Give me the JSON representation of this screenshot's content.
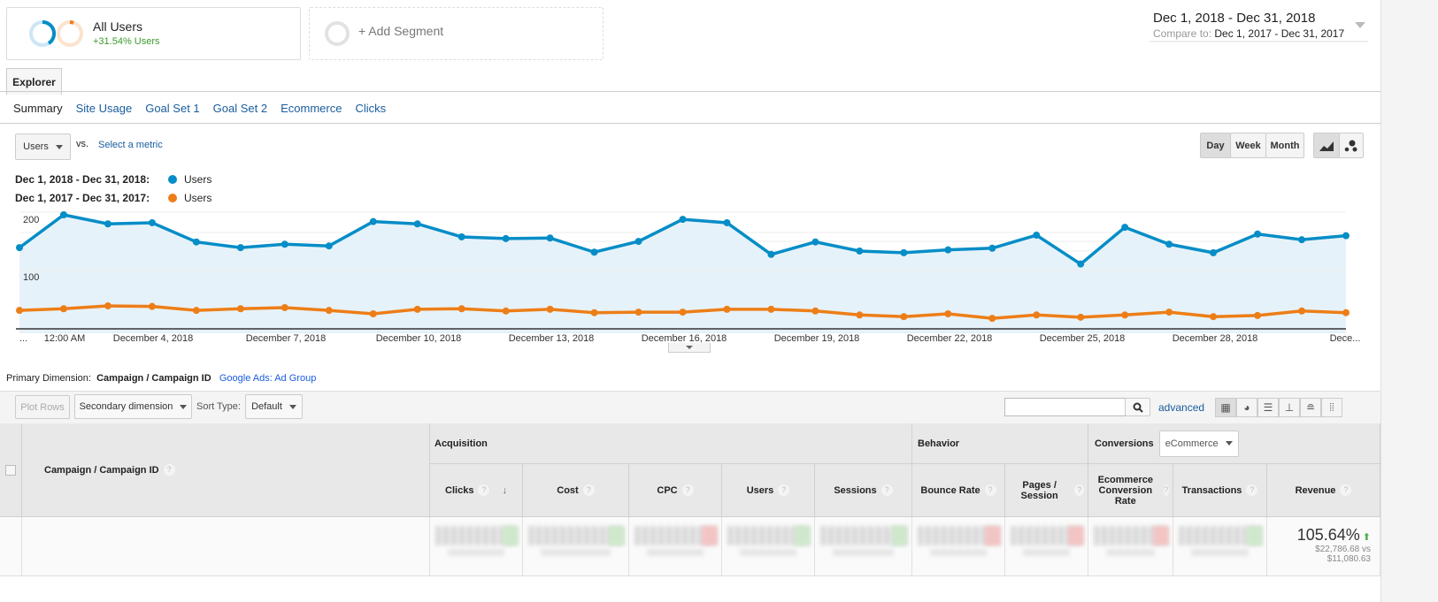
{
  "segments": {
    "all_users": {
      "label": "All Users",
      "change": "+31.54% Users"
    },
    "add_segment": "+ Add Segment"
  },
  "date_range": {
    "primary": "Dec 1, 2018 - Dec 31, 2018",
    "compare_label": "Compare to:",
    "compare": "Dec 1, 2017 - Dec 31, 2017"
  },
  "tabs": {
    "explorer": "Explorer"
  },
  "subtabs": [
    "Summary",
    "Site Usage",
    "Goal Set 1",
    "Goal Set 2",
    "Ecommerce",
    "Clicks"
  ],
  "metric": {
    "selected": "Users",
    "vs": "vs.",
    "select": "Select a metric"
  },
  "granularity": [
    "Day",
    "Week",
    "Month"
  ],
  "legend": [
    {
      "range": "Dec 1, 2018 - Dec 31, 2018:",
      "metric": "Users",
      "color": "#058dc7"
    },
    {
      "range": "Dec 1, 2017 - Dec 31, 2017:",
      "metric": "Users",
      "color": "#ed7e17"
    }
  ],
  "chart_data": {
    "type": "line",
    "y_ticks": [
      "200",
      "100"
    ],
    "x_tick_labels": [
      "...",
      "12:00 AM",
      "December 4, 2018",
      "December 7, 2018",
      "December 10, 2018",
      "December 13, 2018",
      "December 16, 2018",
      "December 19, 2018",
      "December 22, 2018",
      "December 25, 2018",
      "December 28, 2018",
      "Dece..."
    ],
    "ylim": [
      0,
      220
    ],
    "grid": true,
    "series": [
      {
        "name": "Users",
        "color": "#058dc7",
        "values": [
          142,
          200,
          184,
          186,
          152,
          142,
          148,
          145,
          188,
          184,
          161,
          158,
          159,
          134,
          153,
          192,
          186,
          130,
          152,
          136,
          133,
          138,
          141,
          164,
          113,
          178,
          148,
          133,
          166,
          156,
          163
        ]
      },
      {
        "name": "Users",
        "color": "#ed7e17",
        "values": [
          31,
          34,
          39,
          38,
          31,
          34,
          36,
          31,
          25,
          33,
          34,
          30,
          33,
          27,
          28,
          28,
          33,
          33,
          30,
          23,
          20,
          25,
          17,
          23,
          19,
          23,
          28,
          20,
          22,
          30,
          27
        ]
      }
    ]
  },
  "dimension": {
    "label": "Primary Dimension:",
    "current": "Campaign / Campaign ID",
    "other": "Google Ads: Ad Group"
  },
  "toolbar": {
    "plot_rows": "Plot Rows",
    "secondary": "Secondary dimension",
    "sort_label": "Sort Type:",
    "sort_value": "Default",
    "search_placeholder": "",
    "advanced": "advanced"
  },
  "table": {
    "dim_header": "Campaign / Campaign ID",
    "groups": {
      "acquisition": "Acquisition",
      "behavior": "Behavior",
      "conversions": "Conversions",
      "conversions_select": "eCommerce"
    },
    "columns": [
      "Clicks",
      "Cost",
      "CPC",
      "Users",
      "Sessions",
      "Bounce Rate",
      "Pages / Session",
      "Ecommerce Conversion Rate",
      "Transactions",
      "Revenue"
    ],
    "revenue": {
      "change": "105.64%",
      "detail1": "$22,786.68 vs",
      "detail2": "$11,080.63"
    }
  }
}
